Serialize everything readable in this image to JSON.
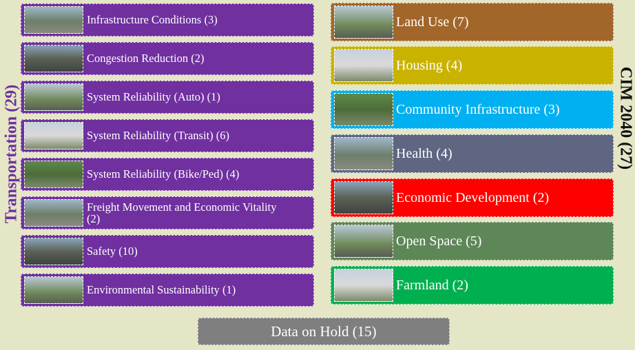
{
  "left_group": {
    "title": "Transportation (29)",
    "items": [
      "Infrastructure Conditions (3)",
      "Congestion Reduction (2)",
      "System Reliability (Auto) (1)",
      "System Reliability (Transit) (6)",
      "System Reliability (Bike/Ped)  (4)",
      "Freight Movement and Economic Vitality (2)",
      "Safety (10)",
      "Environmental Sustainability (1)"
    ]
  },
  "right_group": {
    "title": "CIM 2040 (27)",
    "items": [
      "Land Use (7)",
      "Housing (4)",
      "Community Infrastructure (3)",
      "Health (4)",
      "Economic Development (2)",
      "Open Space (5)",
      "Farmland (2)"
    ]
  },
  "hold": "Data on Hold (15)"
}
